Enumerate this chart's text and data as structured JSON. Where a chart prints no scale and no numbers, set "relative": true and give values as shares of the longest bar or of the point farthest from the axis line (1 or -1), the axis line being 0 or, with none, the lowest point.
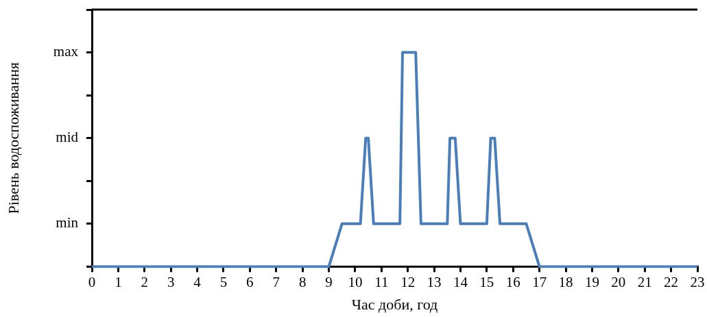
{
  "chart_data": {
    "type": "line",
    "relative": true,
    "xlabel": "Час доби, год",
    "ylabel": "Рівень водоспоживання",
    "xlim": [
      0,
      23
    ],
    "xticks": [
      0,
      1,
      2,
      3,
      4,
      5,
      6,
      7,
      8,
      9,
      10,
      11,
      12,
      13,
      14,
      15,
      16,
      17,
      18,
      19,
      20,
      21,
      22,
      23
    ],
    "annotations": [
      "min",
      "mid",
      "max"
    ],
    "grid": false,
    "legend": false,
    "marker": "none",
    "line_style": "solid",
    "series": [
      {
        "color": "#4a7ebb",
        "x": [
          0,
          9,
          9.5,
          10.2,
          10.4,
          10.5,
          10.7,
          11.7,
          11.8,
          12.3,
          12.5,
          13.5,
          13.6,
          13.8,
          14,
          15,
          15.15,
          15.3,
          15.5,
          16.5,
          17,
          23
        ],
        "values": [
          0,
          0,
          0.2,
          0.2,
          0.6,
          0.6,
          0.2,
          0.2,
          1,
          1,
          0.2,
          0.2,
          0.6,
          0.6,
          0.2,
          0.2,
          0.6,
          0.6,
          0.2,
          0.2,
          0,
          0
        ]
      }
    ]
  }
}
